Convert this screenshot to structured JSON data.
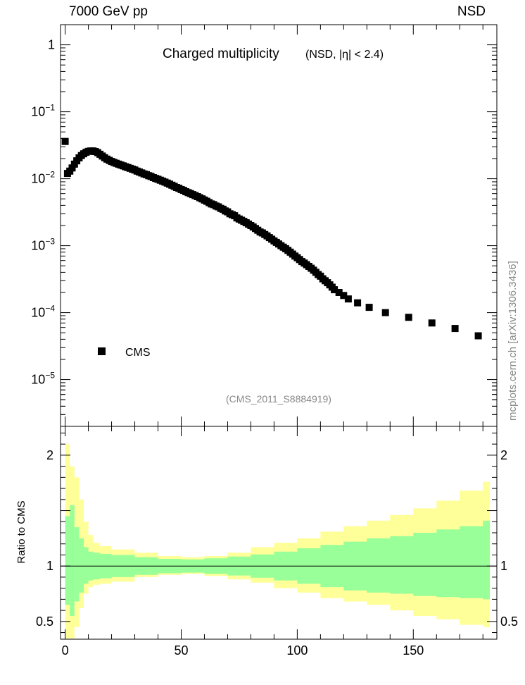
{
  "header": {
    "left": "7000 GeV pp",
    "right": "NSD"
  },
  "side_note": "mcplots.cern.ch [arXiv:1306.3436]",
  "colors": {
    "marker": "#000000",
    "band_inner": "#99ff99",
    "band_outer": "#ffff99",
    "ref_line": "#000000",
    "watermark": "#888888"
  },
  "chart_data": [
    {
      "type": "scatter",
      "title": "Charged multiplicity",
      "subtitle": "(NSD, |η| < 2.4)",
      "watermark": "(CMS_2011_S8884919)",
      "xlim": [
        -2,
        186
      ],
      "ylim": [
        2e-06,
        2
      ],
      "log_y": true,
      "y_tick_labels": [
        "1",
        "10",
        "10",
        "10",
        "10",
        "10"
      ],
      "y_tick_exponents": [
        "",
        "−1",
        "−2",
        "−3",
        "−4",
        "−5"
      ],
      "legend": "bottom-left",
      "series": [
        {
          "name": "CMS",
          "x": [
            0,
            1,
            2,
            3,
            4,
            5,
            6,
            7,
            8,
            9,
            10,
            11,
            12,
            13,
            14,
            15,
            16,
            17,
            18,
            19,
            20,
            21,
            22,
            23,
            24,
            25,
            26,
            27,
            28,
            29,
            30,
            31,
            32,
            33,
            34,
            35,
            36,
            37,
            38,
            39,
            40,
            41,
            42,
            43,
            44,
            45,
            46,
            47,
            48,
            49,
            50,
            51,
            52,
            53,
            54,
            55,
            56,
            57,
            58,
            59,
            60,
            61,
            62,
            63,
            64,
            65,
            66,
            67,
            68,
            69,
            70,
            71,
            72,
            73,
            74,
            75,
            76,
            77,
            78,
            79,
            80,
            81,
            82,
            83,
            84,
            85,
            86,
            87,
            88,
            89,
            90,
            91,
            92,
            93,
            94,
            95,
            96,
            97,
            98,
            99,
            100,
            101,
            102,
            103,
            104,
            105,
            106,
            107,
            108,
            109,
            110,
            111,
            112,
            113,
            114,
            115,
            116,
            118,
            120,
            122,
            126,
            131,
            138,
            148,
            158,
            168,
            178
          ],
          "y": [
            0.036,
            0.012,
            0.013,
            0.0145,
            0.0165,
            0.0185,
            0.0205,
            0.0222,
            0.0236,
            0.0248,
            0.0256,
            0.026,
            0.026,
            0.0255,
            0.0245,
            0.0232,
            0.0218,
            0.0206,
            0.0196,
            0.0188,
            0.0181,
            0.0175,
            0.017,
            0.0165,
            0.016,
            0.0156,
            0.0151,
            0.0147,
            0.0143,
            0.0139,
            0.0135,
            0.013,
            0.0126,
            0.0122,
            0.0118,
            0.0115,
            0.0111,
            0.0108,
            0.0104,
            0.0101,
            0.0098,
            0.0095,
            0.0092,
            0.0089,
            0.0086,
            0.0083,
            0.008,
            0.0077,
            0.0074,
            0.0072,
            0.0069,
            0.0067,
            0.0064,
            0.0062,
            0.006,
            0.0058,
            0.0056,
            0.0054,
            0.0052,
            0.005,
            0.0048,
            0.0046,
            0.0044,
            0.0042,
            0.0041,
            0.0039,
            0.0038,
            0.0036,
            0.0035,
            0.0033,
            0.0032,
            0.003,
            0.0029,
            0.0028,
            0.0026,
            0.0025,
            0.0024,
            0.0023,
            0.0022,
            0.0021,
            0.002,
            0.0019,
            0.0018,
            0.0017,
            0.0016,
            0.00155,
            0.00147,
            0.0014,
            0.00132,
            0.00125,
            0.00118,
            0.00112,
            0.00106,
            0.001,
            0.00095,
            0.0009,
            0.00085,
            0.0008,
            0.00075,
            0.0007,
            0.00066,
            0.00062,
            0.00058,
            0.00055,
            0.00052,
            0.00049,
            0.00046,
            0.00043,
            0.0004,
            0.00037,
            0.00035,
            0.00032,
            0.0003,
            0.00028,
            0.00026,
            0.00024,
            0.00022,
            0.0002,
            0.00018,
            0.00016,
            0.00014,
            0.00012,
            0.0001,
            8.5e-05,
            7e-05,
            5.8e-05,
            4.5e-05
          ]
        }
      ]
    },
    {
      "type": "area",
      "ylabel": "Ratio to CMS",
      "xlim": [
        -2,
        186
      ],
      "ylim": [
        0.34,
        2.26
      ],
      "x_ticks": [
        0,
        50,
        100,
        150
      ],
      "y_ticks": [
        0.5,
        1,
        2
      ],
      "reference_line": 1,
      "series": [
        {
          "name": "",
          "x": [
            0,
            2,
            4,
            6,
            8,
            10,
            12,
            15,
            20,
            30,
            40,
            50,
            60,
            70,
            80,
            90,
            100,
            110,
            120,
            130,
            140,
            150,
            160,
            170,
            180
          ],
          "inner": [
            0.65,
            0.55,
            0.68,
            0.76,
            0.84,
            0.87,
            0.88,
            0.89,
            0.9,
            0.92,
            0.935,
            0.94,
            0.93,
            0.915,
            0.895,
            0.87,
            0.84,
            0.81,
            0.78,
            0.76,
            0.75,
            0.73,
            0.72,
            0.71,
            0.7
          ],
          "inner_top": [
            1.45,
            1.55,
            1.35,
            1.25,
            1.17,
            1.13,
            1.12,
            1.11,
            1.1,
            1.08,
            1.065,
            1.06,
            1.07,
            1.085,
            1.105,
            1.13,
            1.16,
            1.19,
            1.22,
            1.25,
            1.27,
            1.3,
            1.33,
            1.36,
            1.41
          ],
          "outer": [
            0.3,
            0.2,
            0.45,
            0.62,
            0.75,
            0.81,
            0.83,
            0.84,
            0.86,
            0.9,
            0.92,
            0.93,
            0.91,
            0.88,
            0.85,
            0.8,
            0.76,
            0.71,
            0.68,
            0.65,
            0.6,
            0.55,
            0.52,
            0.47,
            0.45
          ],
          "outer_top": [
            2.1,
            1.9,
            1.8,
            1.6,
            1.4,
            1.28,
            1.21,
            1.18,
            1.15,
            1.12,
            1.09,
            1.08,
            1.09,
            1.12,
            1.17,
            1.21,
            1.25,
            1.31,
            1.36,
            1.41,
            1.46,
            1.52,
            1.59,
            1.68,
            1.76
          ]
        }
      ]
    }
  ]
}
